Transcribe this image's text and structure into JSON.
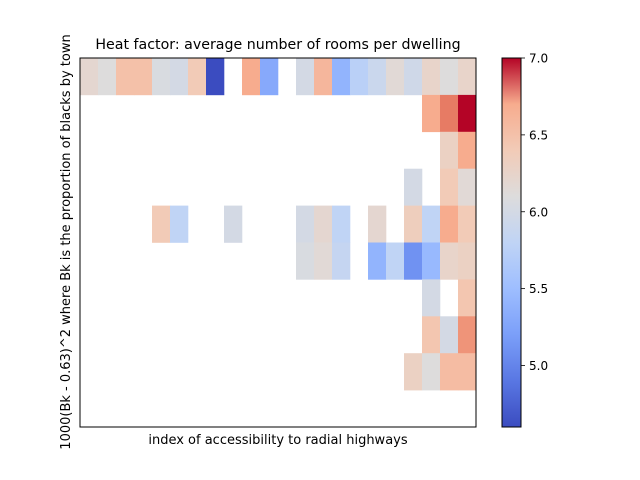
{
  "chart_data": {
    "type": "heatmap",
    "title": "Heat factor: average number of rooms per dwelling",
    "xlabel": "index of accessibility to radial highways",
    "ylabel": "1000(Bk - 0.63)^2 where Bk is the proportion of blacks by town",
    "n_rows": 10,
    "n_cols": 22,
    "colorbar": {
      "colormap": "coolwarm",
      "vmin": 4.6,
      "vmax": 7.0,
      "ticks": [
        5.0,
        5.5,
        6.0,
        6.5,
        7.0
      ],
      "tick_labels": [
        "5.0",
        "5.5",
        "6.0",
        "6.5",
        "7.0"
      ]
    },
    "values": [
      [
        6.2,
        6.1,
        6.5,
        6.5,
        6.05,
        6.0,
        6.4,
        4.6,
        null,
        6.7,
        5.3,
        null,
        6.0,
        6.6,
        5.4,
        5.75,
        5.9,
        6.15,
        5.95,
        6.25,
        6.1,
        6.25
      ],
      [
        null,
        null,
        null,
        null,
        null,
        null,
        null,
        null,
        null,
        null,
        null,
        null,
        null,
        null,
        null,
        null,
        null,
        null,
        null,
        6.7,
        6.8,
        7.0
      ],
      [
        null,
        null,
        null,
        null,
        null,
        null,
        null,
        null,
        null,
        null,
        null,
        null,
        null,
        null,
        null,
        null,
        null,
        null,
        null,
        null,
        6.3,
        6.7
      ],
      [
        null,
        null,
        null,
        null,
        null,
        null,
        null,
        null,
        null,
        null,
        null,
        null,
        null,
        null,
        null,
        null,
        null,
        null,
        6.0,
        null,
        6.4,
        6.15
      ],
      [
        null,
        null,
        null,
        null,
        6.4,
        5.8,
        null,
        null,
        6.0,
        null,
        null,
        null,
        6.0,
        6.2,
        5.8,
        null,
        6.2,
        null,
        6.35,
        5.8,
        6.7,
        6.4
      ],
      [
        null,
        null,
        null,
        null,
        null,
        null,
        null,
        null,
        null,
        null,
        null,
        null,
        6.05,
        6.15,
        5.85,
        null,
        5.4,
        5.8,
        5.1,
        5.45,
        6.25,
        6.3
      ],
      [
        null,
        null,
        null,
        null,
        null,
        null,
        null,
        null,
        null,
        null,
        null,
        null,
        null,
        null,
        null,
        null,
        null,
        null,
        null,
        6.0,
        null,
        6.45
      ],
      [
        null,
        null,
        null,
        null,
        null,
        null,
        null,
        null,
        null,
        null,
        null,
        null,
        null,
        null,
        null,
        null,
        null,
        null,
        null,
        6.45,
        6.0,
        6.75
      ],
      [
        null,
        null,
        null,
        null,
        null,
        null,
        null,
        null,
        null,
        null,
        null,
        null,
        null,
        null,
        null,
        null,
        null,
        null,
        6.3,
        6.1,
        6.55,
        6.55
      ],
      [
        null,
        null,
        null,
        null,
        null,
        null,
        null,
        null,
        null,
        null,
        null,
        null,
        null,
        null,
        null,
        null,
        null,
        null,
        null,
        null,
        null,
        null
      ]
    ]
  }
}
